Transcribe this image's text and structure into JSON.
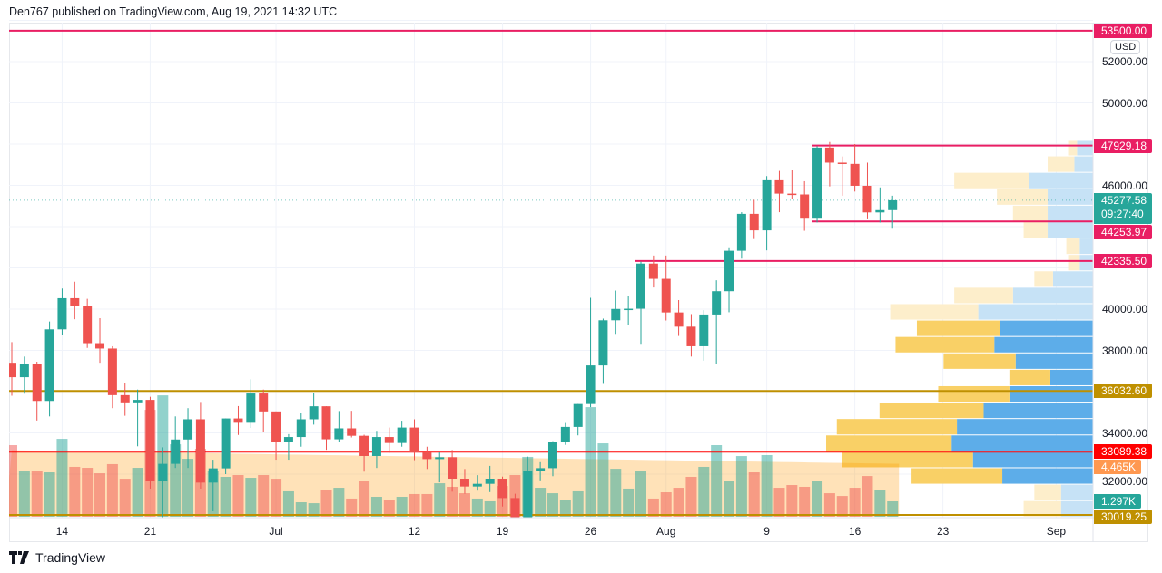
{
  "header": {
    "text": "Den767 published on TradingView.com, Aug 19, 2021 14:32 UTC"
  },
  "footer": {
    "brand": "TradingView",
    "logo_icon": "tradingview-logo-icon"
  },
  "colors": {
    "up": "#26a69a",
    "down": "#ef5350",
    "pink": "#e91e63",
    "gold": "#bf9000",
    "red": "#ff0000",
    "vol_up": "rgba(38,166,154,0.5)",
    "vol_down": "rgba(239,83,80,0.5)",
    "vol_ma_area": "rgba(255,152,0,0.28)",
    "vp_up": "#5dade9",
    "vp_down": "#f9d066",
    "vp_up_light": "#c6e2f6",
    "vp_down_light": "#fdeecb"
  },
  "price_axis": {
    "currency": "USD",
    "ticks": [
      "52000.00",
      "50000.00",
      "46000.00",
      "40000.00",
      "38000.00",
      "34000.00",
      "32000.00"
    ],
    "tick_values": [
      52000,
      50000,
      46000,
      40000,
      38000,
      34000,
      32000
    ]
  },
  "time_axis": {
    "ticks": [
      {
        "label": "14",
        "date": "2021-06-14"
      },
      {
        "label": "21",
        "date": "2021-06-21"
      },
      {
        "label": "Jul",
        "date": "2021-07-01"
      },
      {
        "label": "12",
        "date": "2021-07-12"
      },
      {
        "label": "19",
        "date": "2021-07-19"
      },
      {
        "label": "26",
        "date": "2021-07-26"
      },
      {
        "label": "Aug",
        "date": "2021-08-01"
      },
      {
        "label": "9",
        "date": "2021-08-09"
      },
      {
        "label": "16",
        "date": "2021-08-16"
      },
      {
        "label": "23",
        "date": "2021-08-23"
      },
      {
        "label": "Sep",
        "date": "2021-09-01"
      }
    ]
  },
  "levels": [
    {
      "label": "53500.00",
      "price": 53500,
      "color": "#e91e63",
      "from": null
    },
    {
      "label": "47929.18",
      "price": 47929.18,
      "color": "#e91e63",
      "from": "2021-08-13"
    },
    {
      "label": "44253.97",
      "price": 44253.97,
      "color": "#e91e63",
      "from": "2021-08-13"
    },
    {
      "label": "42335.50",
      "price": 42335.5,
      "color": "#e91e63",
      "from": "2021-07-30"
    },
    {
      "label": "36032.60",
      "price": 36032.6,
      "color": "#bf9000",
      "from": null
    },
    {
      "label": "33089.38",
      "price": 33089.38,
      "color": "#ff0000",
      "from": null
    },
    {
      "label": "30019.25",
      "price": 30019.25,
      "color": "#bf9000",
      "from": null
    }
  ],
  "last_price": {
    "label": "45277.58",
    "price": 45277.58,
    "countdown": "09:27:40",
    "color": "#26a69a"
  },
  "volume_labels": [
    {
      "label": "4.465K",
      "value": 4.465,
      "color": "#ff9850"
    },
    {
      "label": "1.297K",
      "value": 1.297,
      "color": "#26a69a"
    }
  ],
  "chart_data": {
    "type": "candlestick",
    "fields": [
      "date",
      "open",
      "high",
      "low",
      "close",
      "volume_k"
    ],
    "candles": [
      [
        "2021-06-10",
        37400,
        38400,
        35800,
        36700,
        6.03
      ],
      [
        "2021-06-11",
        36700,
        37700,
        35900,
        37340,
        3.89
      ],
      [
        "2021-06-12",
        37340,
        37450,
        34600,
        35550,
        3.89
      ],
      [
        "2021-06-13",
        35550,
        39400,
        34800,
        39020,
        3.74
      ],
      [
        "2021-06-14",
        39020,
        41000,
        38760,
        40530,
        6.56
      ],
      [
        "2021-06-15",
        40530,
        41330,
        39510,
        40140,
        4.2
      ],
      [
        "2021-06-16",
        40140,
        40500,
        38120,
        38350,
        4.12
      ],
      [
        "2021-06-17",
        38350,
        39560,
        37400,
        38090,
        3.66
      ],
      [
        "2021-06-18",
        38090,
        38200,
        35200,
        35830,
        4.43
      ],
      [
        "2021-06-19",
        35830,
        36440,
        34830,
        35480,
        3.2
      ],
      [
        "2021-06-20",
        35480,
        36100,
        33350,
        35600,
        4.12
      ],
      [
        "2021-06-21",
        35600,
        35750,
        31300,
        31680,
        9.0
      ],
      [
        "2021-06-22",
        31680,
        33300,
        28800,
        32500,
        10.22
      ],
      [
        "2021-06-23",
        32500,
        34800,
        32300,
        33680,
        6.1
      ],
      [
        "2021-06-24",
        33680,
        35200,
        32300,
        34660,
        4.88
      ],
      [
        "2021-06-25",
        34660,
        35500,
        31300,
        31590,
        5.72
      ],
      [
        "2021-06-26",
        31590,
        32700,
        30200,
        32280,
        3.82
      ],
      [
        "2021-06-27",
        32280,
        34700,
        32000,
        34700,
        3.36
      ],
      [
        "2021-06-28",
        34700,
        35300,
        33900,
        34490,
        3.51
      ],
      [
        "2021-06-29",
        34490,
        36600,
        34240,
        35910,
        3.28
      ],
      [
        "2021-06-30",
        35910,
        36100,
        34050,
        35040,
        3.51
      ],
      [
        "2021-07-01",
        35040,
        35040,
        32700,
        33540,
        3.2
      ],
      [
        "2021-07-02",
        33540,
        33940,
        32700,
        33800,
        2.14
      ],
      [
        "2021-07-03",
        33800,
        34950,
        33330,
        34660,
        1.22
      ],
      [
        "2021-07-04",
        34660,
        35950,
        34400,
        35290,
        1.14
      ],
      [
        "2021-07-05",
        35290,
        35290,
        33180,
        33690,
        2.29
      ],
      [
        "2021-07-06",
        33690,
        35060,
        33550,
        34220,
        2.44
      ],
      [
        "2021-07-07",
        34220,
        35070,
        33780,
        33860,
        1.53
      ],
      [
        "2021-07-08",
        33860,
        33910,
        32120,
        32880,
        3.05
      ],
      [
        "2021-07-09",
        32880,
        34100,
        32300,
        33800,
        1.68
      ],
      [
        "2021-07-10",
        33800,
        34260,
        33030,
        33510,
        1.45
      ],
      [
        "2021-07-11",
        33510,
        34590,
        33330,
        34260,
        1.68
      ],
      [
        "2021-07-12",
        34260,
        34660,
        32680,
        33090,
        1.91
      ],
      [
        "2021-07-13",
        33090,
        33330,
        32250,
        32730,
        1.91
      ],
      [
        "2021-07-14",
        32730,
        33100,
        31600,
        32820,
        2.82
      ],
      [
        "2021-07-15",
        32820,
        33170,
        31150,
        31780,
        2.52
      ],
      [
        "2021-07-16",
        31780,
        32250,
        31050,
        31400,
        1.98
      ],
      [
        "2021-07-17",
        31400,
        31950,
        31200,
        31530,
        1.53
      ],
      [
        "2021-07-18",
        31530,
        32400,
        31130,
        31780,
        1.3
      ],
      [
        "2021-07-19",
        31780,
        31880,
        30430,
        30840,
        2.59
      ],
      [
        "2021-07-20",
        30840,
        31050,
        29280,
        29790,
        3.51
      ],
      [
        "2021-07-21",
        29790,
        32850,
        29500,
        32140,
        5.04
      ],
      [
        "2021-07-22",
        32140,
        32580,
        31700,
        32290,
        2.44
      ],
      [
        "2021-07-23",
        32290,
        33600,
        31900,
        33580,
        1.98
      ],
      [
        "2021-07-24",
        33580,
        34480,
        33420,
        34290,
        1.45
      ],
      [
        "2021-07-25",
        34290,
        35400,
        33880,
        35400,
        2.14
      ],
      [
        "2021-07-26",
        35400,
        40550,
        35250,
        37270,
        9.23
      ],
      [
        "2021-07-27",
        37270,
        39540,
        36420,
        39460,
        6.18
      ],
      [
        "2021-07-28",
        39460,
        40900,
        38800,
        40010,
        4.04
      ],
      [
        "2021-07-29",
        40010,
        40620,
        39250,
        40020,
        2.37
      ],
      [
        "2021-07-30",
        40020,
        42300,
        38320,
        42210,
        3.82
      ],
      [
        "2021-07-31",
        42210,
        42600,
        41050,
        41470,
        1.53
      ],
      [
        "2021-08-01",
        41470,
        42600,
        39450,
        39840,
        2.06
      ],
      [
        "2021-08-02",
        39840,
        40440,
        38700,
        39150,
        2.44
      ],
      [
        "2021-08-03",
        39150,
        39760,
        37700,
        38200,
        3.36
      ],
      [
        "2021-08-04",
        38200,
        39950,
        37500,
        39740,
        4.2
      ],
      [
        "2021-08-05",
        39740,
        41400,
        37350,
        40870,
        6.03
      ],
      [
        "2021-08-06",
        40870,
        43000,
        39850,
        42830,
        3.05
      ],
      [
        "2021-08-07",
        42830,
        44700,
        42450,
        44620,
        5.11
      ],
      [
        "2021-08-08",
        44620,
        45300,
        43400,
        43820,
        3.74
      ],
      [
        "2021-08-09",
        43820,
        46450,
        42850,
        46290,
        5.19
      ],
      [
        "2021-08-10",
        46290,
        46700,
        44700,
        45600,
        2.44
      ],
      [
        "2021-08-11",
        45600,
        46750,
        45350,
        45560,
        2.67
      ],
      [
        "2021-08-12",
        45560,
        46200,
        43800,
        44430,
        2.52
      ],
      [
        "2021-08-13",
        44430,
        47900,
        44200,
        47830,
        3.05
      ],
      [
        "2021-08-14",
        47830,
        48100,
        45950,
        47100,
        1.98
      ],
      [
        "2021-08-15",
        47100,
        47400,
        45500,
        47040,
        1.75
      ],
      [
        "2021-08-16",
        47040,
        48000,
        45700,
        45980,
        2.44
      ],
      [
        "2021-08-17",
        45980,
        47100,
        44400,
        44690,
        3.43
      ],
      [
        "2021-08-18",
        44690,
        45900,
        44200,
        44800,
        2.29
      ],
      [
        "2021-08-19",
        44800,
        45500,
        43900,
        45277.58,
        1.297
      ]
    ],
    "volume_profile": {
      "price_range": [
        29900,
        48200
      ],
      "order": "top-to-bottom",
      "rows": [
        {
          "up": 0.06,
          "down": 0.03,
          "value_area": false
        },
        {
          "up": 0.07,
          "down": 0.1,
          "value_area": false
        },
        {
          "up": 0.24,
          "down": 0.28,
          "value_area": false
        },
        {
          "up": 0.17,
          "down": 0.19,
          "value_area": false
        },
        {
          "up": 0.17,
          "down": 0.13,
          "value_area": false
        },
        {
          "up": 0.17,
          "down": 0.09,
          "value_area": false
        },
        {
          "up": 0.05,
          "down": 0.05,
          "value_area": false
        },
        {
          "up": 0.05,
          "down": 0.04,
          "value_area": false
        },
        {
          "up": 0.15,
          "down": 0.07,
          "value_area": false
        },
        {
          "up": 0.3,
          "down": 0.22,
          "value_area": false
        },
        {
          "up": 0.43,
          "down": 0.33,
          "value_area": false
        },
        {
          "up": 0.35,
          "down": 0.31,
          "value_area": true
        },
        {
          "up": 0.37,
          "down": 0.37,
          "value_area": true
        },
        {
          "up": 0.29,
          "down": 0.27,
          "value_area": true
        },
        {
          "up": 0.16,
          "down": 0.15,
          "value_area": true
        },
        {
          "up": 0.31,
          "down": 0.27,
          "value_area": true
        },
        {
          "up": 0.41,
          "down": 0.39,
          "value_area": true
        },
        {
          "up": 0.51,
          "down": 0.45,
          "value_area": true
        },
        {
          "up": 0.53,
          "down": 0.47,
          "value_area": true
        },
        {
          "up": 0.45,
          "down": 0.49,
          "value_area": true
        },
        {
          "up": 0.34,
          "down": 0.34,
          "value_area": true
        },
        {
          "up": 0.12,
          "down": 0.1,
          "value_area": false
        },
        {
          "up": 0.12,
          "down": 0.14,
          "value_area": false
        }
      ]
    }
  }
}
